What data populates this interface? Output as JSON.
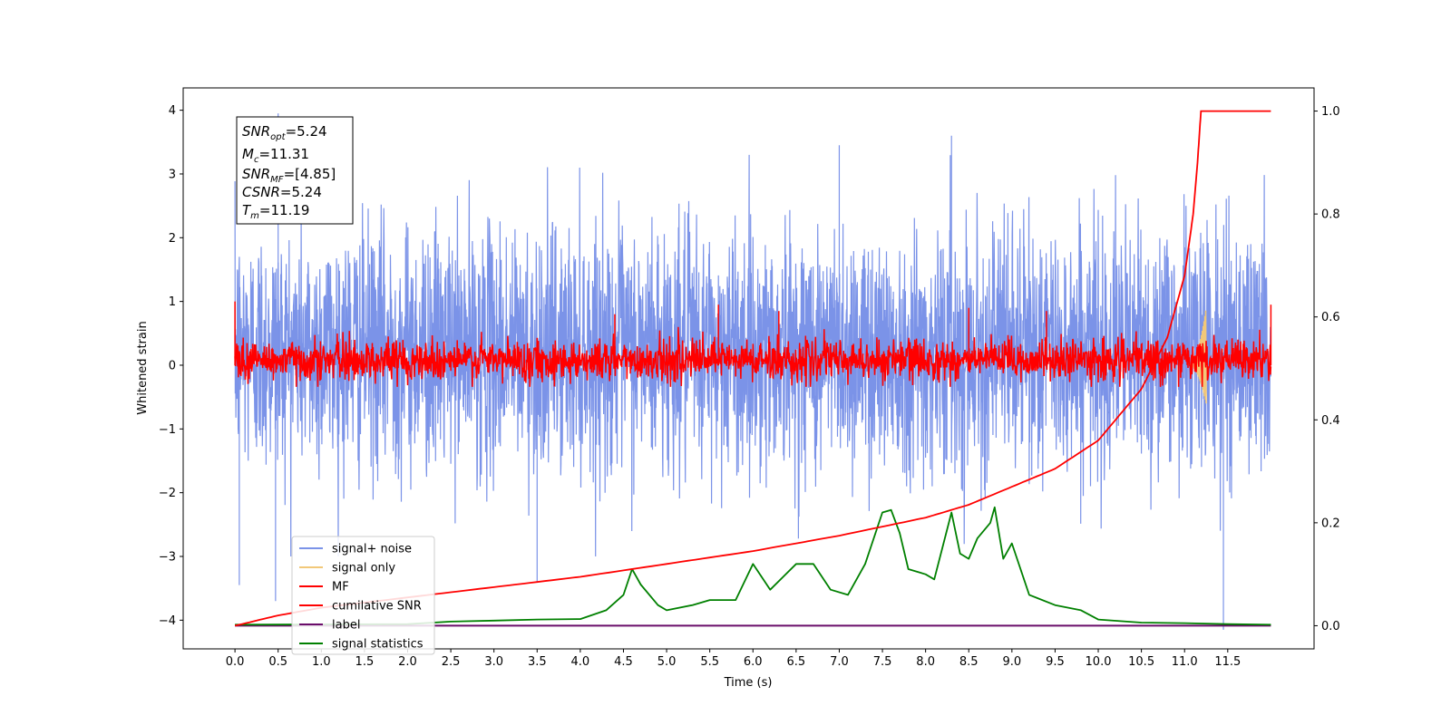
{
  "chart_data": {
    "type": "line",
    "xlabel": "Time (s)",
    "ylabel_left": "Whitened strain",
    "xlim": [
      -0.6,
      12.5
    ],
    "ylim_left": [
      -4.45,
      4.35
    ],
    "ylim_right": [
      -0.045,
      1.045
    ],
    "x_ticks": [
      "0.0",
      "0.5",
      "1.0",
      "1.5",
      "2.0",
      "2.5",
      "3.0",
      "3.5",
      "4.0",
      "4.5",
      "5.0",
      "5.5",
      "6.0",
      "6.5",
      "7.0",
      "7.5",
      "8.0",
      "8.5",
      "9.0",
      "9.5",
      "10.0",
      "10.5",
      "11.0",
      "11.5"
    ],
    "y_ticks_left": [
      "4",
      "3",
      "2",
      "1",
      "0",
      "−1",
      "−2",
      "−3",
      "−4"
    ],
    "y_ticks_right": [
      "1.0",
      "0.8",
      "0.6",
      "0.4",
      "0.2",
      "0.0"
    ],
    "grid": false,
    "legend_position": "lower-left",
    "info_box": {
      "snr_opt": "=5.24",
      "mc": "=11.31",
      "snr_mf": "=[4.85]",
      "csnr": "=5.24",
      "tm": "=11.19"
    },
    "series": [
      {
        "name": "signal+ noise",
        "color": "#7b93e8",
        "axis": "left",
        "x_range": [
          0.0,
          12.0
        ],
        "envelope_typical": [
          -1.7,
          2.3
        ],
        "spikes": [
          [
            0.05,
            -3.45
          ],
          [
            0.5,
            3.95
          ],
          [
            0.47,
            -3.7
          ],
          [
            3.5,
            -3.4
          ],
          [
            8.3,
            3.6
          ],
          [
            11.45,
            -4.15
          ],
          [
            7.0,
            3.45
          ]
        ]
      },
      {
        "name": "signal only",
        "color": "#f2c879",
        "axis": "left",
        "x_range": [
          11.05,
          11.25
        ],
        "peak": [
          0.9,
          -0.6
        ]
      },
      {
        "name": "MF",
        "color": "#ff0000",
        "axis": "left",
        "x_range": [
          0.0,
          12.0
        ],
        "envelope_typical": [
          -0.35,
          0.55
        ],
        "spikes": [
          [
            0.0,
            1.0
          ],
          [
            4.4,
            0.8
          ],
          [
            5.6,
            0.95
          ],
          [
            6.3,
            0.85
          ],
          [
            8.5,
            0.9
          ],
          [
            9.4,
            0.85
          ],
          [
            12.0,
            0.95
          ]
        ]
      },
      {
        "name": "cumilative SNR",
        "color": "#ff0000",
        "axis": "right",
        "x": [
          0.0,
          0.5,
          1.0,
          2.0,
          3.0,
          4.0,
          5.0,
          6.0,
          7.0,
          8.0,
          8.5,
          9.0,
          9.5,
          10.0,
          10.5,
          10.8,
          11.0,
          11.1,
          11.15,
          11.19,
          12.0
        ],
        "y": [
          0.0,
          0.02,
          0.035,
          0.055,
          0.075,
          0.095,
          0.12,
          0.145,
          0.175,
          0.21,
          0.235,
          0.27,
          0.305,
          0.36,
          0.46,
          0.56,
          0.68,
          0.8,
          0.9,
          1.0,
          1.0
        ]
      },
      {
        "name": "label",
        "color": "#6a0d6a",
        "axis": "right",
        "x": [
          0.0,
          12.0
        ],
        "y": [
          0.0,
          0.0
        ]
      },
      {
        "name": "signal statistics",
        "color": "#008000",
        "axis": "right",
        "x": [
          0.0,
          2.0,
          2.5,
          3.0,
          3.5,
          4.0,
          4.3,
          4.5,
          4.6,
          4.7,
          4.9,
          5.0,
          5.3,
          5.5,
          5.8,
          6.0,
          6.2,
          6.5,
          6.7,
          6.9,
          7.1,
          7.3,
          7.5,
          7.6,
          7.7,
          7.8,
          8.0,
          8.1,
          8.3,
          8.4,
          8.5,
          8.6,
          8.75,
          8.8,
          8.9,
          9.0,
          9.2,
          9.5,
          9.8,
          10.0,
          10.5,
          11.0,
          11.5,
          12.0
        ],
        "y": [
          0.002,
          0.003,
          0.008,
          0.01,
          0.012,
          0.013,
          0.03,
          0.06,
          0.11,
          0.08,
          0.04,
          0.03,
          0.04,
          0.05,
          0.05,
          0.12,
          0.07,
          0.12,
          0.12,
          0.07,
          0.06,
          0.12,
          0.22,
          0.225,
          0.18,
          0.11,
          0.1,
          0.09,
          0.22,
          0.14,
          0.13,
          0.17,
          0.2,
          0.23,
          0.13,
          0.16,
          0.06,
          0.04,
          0.03,
          0.012,
          0.006,
          0.005,
          0.003,
          0.002
        ]
      }
    ]
  }
}
